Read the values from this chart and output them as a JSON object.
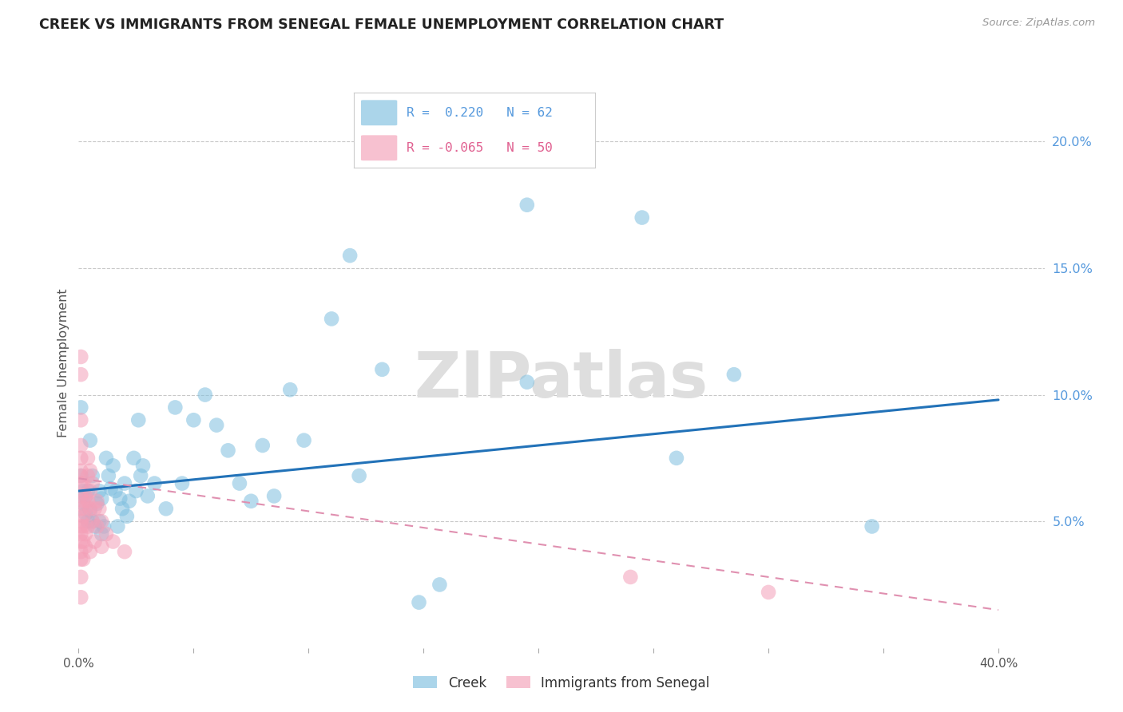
{
  "title": "CREEK VS IMMIGRANTS FROM SENEGAL FEMALE UNEMPLOYMENT CORRELATION CHART",
  "source": "Source: ZipAtlas.com",
  "ylabel": "Female Unemployment",
  "xlim": [
    0.0,
    0.42
  ],
  "ylim": [
    0.0,
    0.225
  ],
  "yticks_right": [
    0.05,
    0.1,
    0.15,
    0.2
  ],
  "yticklabels_right": [
    "5.0%",
    "10.0%",
    "15.0%",
    "20.0%"
  ],
  "grid_yticks": [
    0.05,
    0.1,
    0.15,
    0.2
  ],
  "creek_color": "#7fbfdf",
  "creek_edge_color": "#7fbfdf",
  "senegal_color": "#f4a0b8",
  "senegal_edge_color": "#f4a0b8",
  "creek_line_color": "#2272b8",
  "senegal_line_color": "#f4a0b8",
  "legend_R_creek": " 0.220",
  "legend_N_creek": "62",
  "legend_R_senegal": "-0.065",
  "legend_N_senegal": "50",
  "watermark": "ZIPatlas",
  "creek_scatter": [
    [
      0.001,
      0.068
    ],
    [
      0.001,
      0.095
    ],
    [
      0.002,
      0.062
    ],
    [
      0.002,
      0.057
    ],
    [
      0.003,
      0.053
    ],
    [
      0.003,
      0.06
    ],
    [
      0.004,
      0.05
    ],
    [
      0.004,
      0.062
    ],
    [
      0.005,
      0.082
    ],
    [
      0.005,
      0.054
    ],
    [
      0.006,
      0.068
    ],
    [
      0.006,
      0.05
    ],
    [
      0.007,
      0.048
    ],
    [
      0.008,
      0.057
    ],
    [
      0.009,
      0.05
    ],
    [
      0.009,
      0.062
    ],
    [
      0.01,
      0.045
    ],
    [
      0.01,
      0.059
    ],
    [
      0.011,
      0.048
    ],
    [
      0.012,
      0.075
    ],
    [
      0.013,
      0.068
    ],
    [
      0.014,
      0.063
    ],
    [
      0.015,
      0.072
    ],
    [
      0.016,
      0.062
    ],
    [
      0.017,
      0.048
    ],
    [
      0.018,
      0.059
    ],
    [
      0.019,
      0.055
    ],
    [
      0.02,
      0.065
    ],
    [
      0.021,
      0.052
    ],
    [
      0.022,
      0.058
    ],
    [
      0.024,
      0.075
    ],
    [
      0.025,
      0.062
    ],
    [
      0.026,
      0.09
    ],
    [
      0.027,
      0.068
    ],
    [
      0.028,
      0.072
    ],
    [
      0.03,
      0.06
    ],
    [
      0.033,
      0.065
    ],
    [
      0.038,
      0.055
    ],
    [
      0.042,
      0.095
    ],
    [
      0.045,
      0.065
    ],
    [
      0.05,
      0.09
    ],
    [
      0.055,
      0.1
    ],
    [
      0.06,
      0.088
    ],
    [
      0.065,
      0.078
    ],
    [
      0.07,
      0.065
    ],
    [
      0.075,
      0.058
    ],
    [
      0.08,
      0.08
    ],
    [
      0.085,
      0.06
    ],
    [
      0.092,
      0.102
    ],
    [
      0.098,
      0.082
    ],
    [
      0.11,
      0.13
    ],
    [
      0.118,
      0.155
    ],
    [
      0.122,
      0.068
    ],
    [
      0.132,
      0.11
    ],
    [
      0.148,
      0.018
    ],
    [
      0.157,
      0.025
    ],
    [
      0.195,
      0.175
    ],
    [
      0.245,
      0.17
    ],
    [
      0.285,
      0.108
    ],
    [
      0.345,
      0.048
    ],
    [
      0.195,
      0.105
    ],
    [
      0.26,
      0.075
    ]
  ],
  "senegal_scatter": [
    [
      0.001,
      0.115
    ],
    [
      0.001,
      0.108
    ],
    [
      0.001,
      0.09
    ],
    [
      0.001,
      0.08
    ],
    [
      0.001,
      0.075
    ],
    [
      0.001,
      0.07
    ],
    [
      0.001,
      0.068
    ],
    [
      0.001,
      0.065
    ],
    [
      0.001,
      0.06
    ],
    [
      0.001,
      0.055
    ],
    [
      0.001,
      0.05
    ],
    [
      0.001,
      0.048
    ],
    [
      0.001,
      0.045
    ],
    [
      0.001,
      0.042
    ],
    [
      0.001,
      0.038
    ],
    [
      0.001,
      0.035
    ],
    [
      0.001,
      0.028
    ],
    [
      0.001,
      0.02
    ],
    [
      0.002,
      0.065
    ],
    [
      0.002,
      0.058
    ],
    [
      0.002,
      0.052
    ],
    [
      0.002,
      0.048
    ],
    [
      0.002,
      0.042
    ],
    [
      0.002,
      0.035
    ],
    [
      0.003,
      0.06
    ],
    [
      0.003,
      0.055
    ],
    [
      0.003,
      0.045
    ],
    [
      0.003,
      0.04
    ],
    [
      0.004,
      0.075
    ],
    [
      0.004,
      0.068
    ],
    [
      0.004,
      0.058
    ],
    [
      0.004,
      0.048
    ],
    [
      0.005,
      0.07
    ],
    [
      0.005,
      0.062
    ],
    [
      0.005,
      0.055
    ],
    [
      0.005,
      0.038
    ],
    [
      0.006,
      0.065
    ],
    [
      0.006,
      0.05
    ],
    [
      0.007,
      0.055
    ],
    [
      0.007,
      0.042
    ],
    [
      0.008,
      0.058
    ],
    [
      0.008,
      0.048
    ],
    [
      0.009,
      0.055
    ],
    [
      0.01,
      0.05
    ],
    [
      0.01,
      0.04
    ],
    [
      0.012,
      0.045
    ],
    [
      0.015,
      0.042
    ],
    [
      0.02,
      0.038
    ],
    [
      0.24,
      0.028
    ],
    [
      0.3,
      0.022
    ]
  ],
  "creek_line_x": [
    0.0,
    0.4
  ],
  "creek_line_y": [
    0.062,
    0.098
  ],
  "senegal_line_x": [
    0.0,
    0.4
  ],
  "senegal_line_y": [
    0.067,
    0.015
  ]
}
